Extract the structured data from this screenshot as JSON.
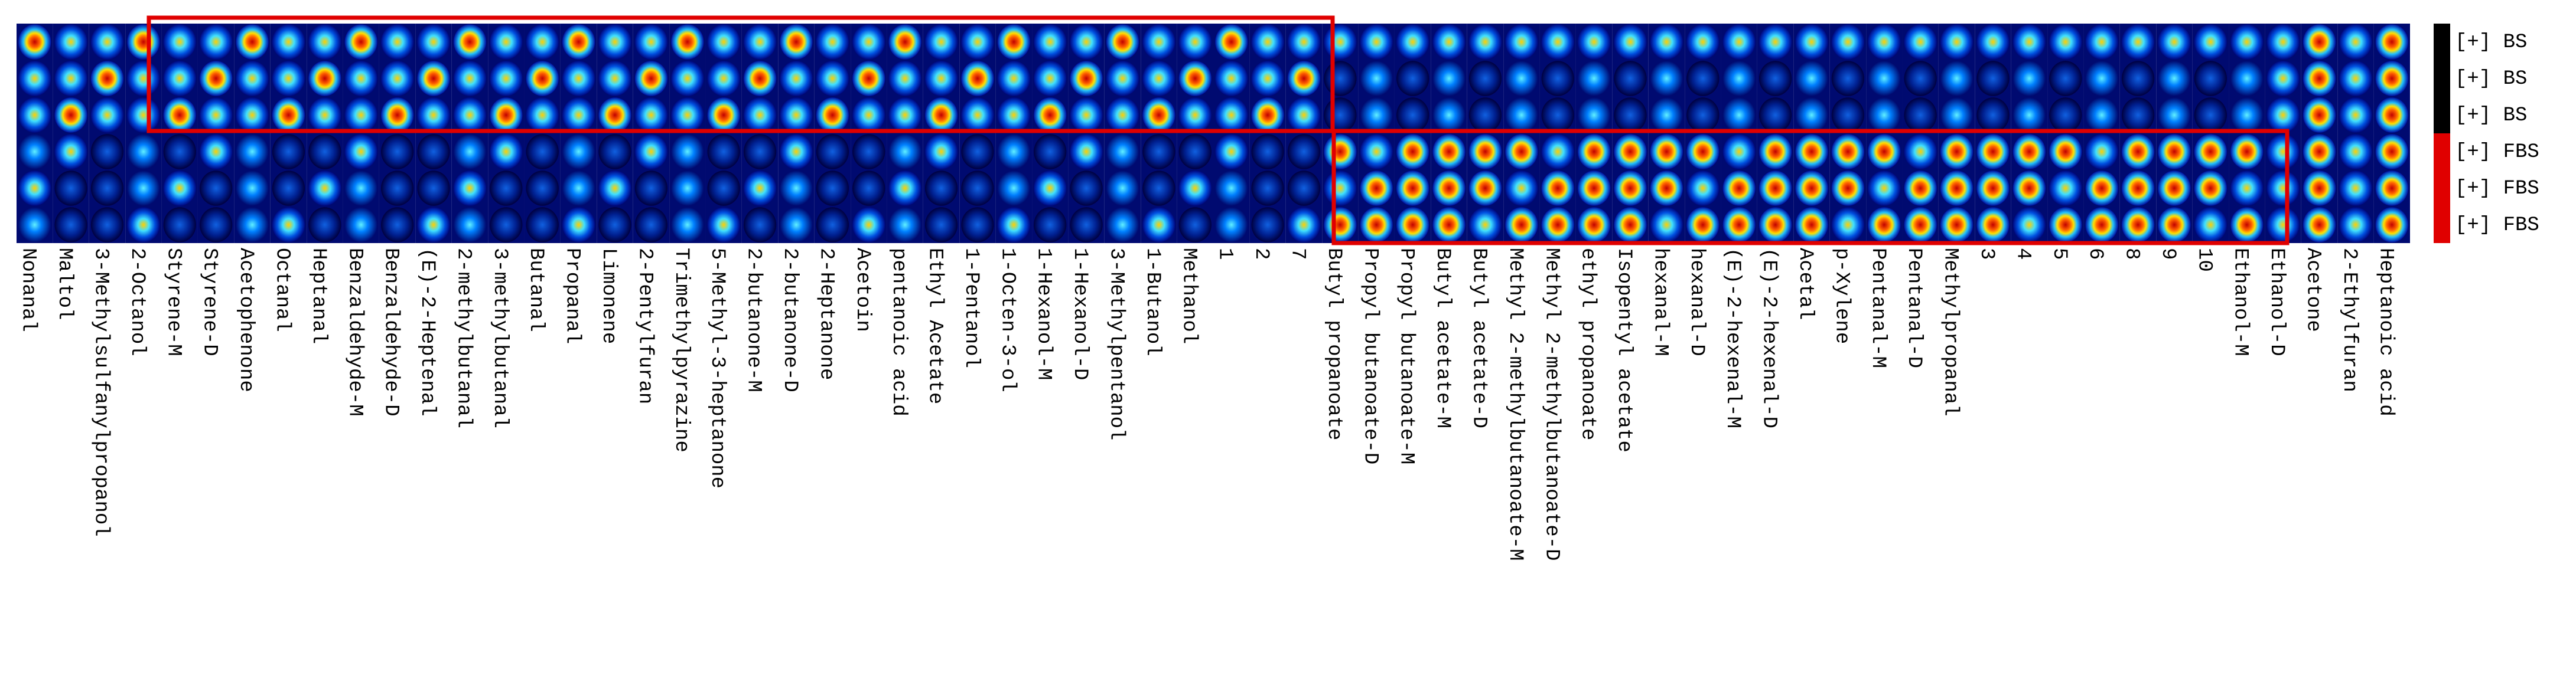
{
  "columns": [
    "Nonanal",
    "Maltol",
    "3-Methylsulfanylpropanol",
    "2-Octanol",
    "Styrene-M",
    "Styrene-D",
    "Acetophenone",
    "Octanal",
    "Heptanal",
    "Benzaldehyde-M",
    "Benzaldehyde-D",
    "(E)-2-Heptenal",
    "2-methylbutanal",
    "3-methylbutanal",
    "Butanal",
    "Propanal",
    "Limonene",
    "2-Pentylfuran",
    "Trimethylpyrazine",
    "5-Methyl-3-heptanone",
    "2-butanone-M",
    "2-butanone-D",
    "2-Heptanone",
    "Acetoin",
    "pentanoic acid",
    "Ethyl Acetate",
    "1-Pentanol",
    "1-Octen-3-ol",
    "1-Hexanol-M",
    "1-Hexanol-D",
    "3-Methylpentanol",
    "1-Butanol",
    "Methanol",
    "1",
    "2",
    "7",
    "Butyl propanoate",
    "Propyl butanoate-D",
    "Propyl butanoate-M",
    "Butyl acetate-M",
    "Butyl acetate-D",
    "Methyl 2-methylbutanoate-M",
    "Methyl 2-methylbutanoate-D",
    "ethyl propanoate",
    "Isopentyl acetate",
    "hexanal-M",
    "hexanal-D",
    "(E)-2-hexenal-M",
    "(E)-2-hexenal-D",
    "Acetal",
    "p-Xylene",
    "Pentanal-M",
    "Pentanal-D",
    "Methylpropanal",
    "3",
    "4",
    "5",
    "6",
    "8",
    "9",
    "10",
    "Ethanol-M",
    "Ethanol-D",
    "Acetone",
    "2-Ethylfuran",
    "Heptanoic acid"
  ],
  "rows": [
    "[+] BS",
    "[+] BS",
    "[+] BS",
    "[+] FBS",
    "[+] FBS",
    "[+] FBS"
  ]
}
